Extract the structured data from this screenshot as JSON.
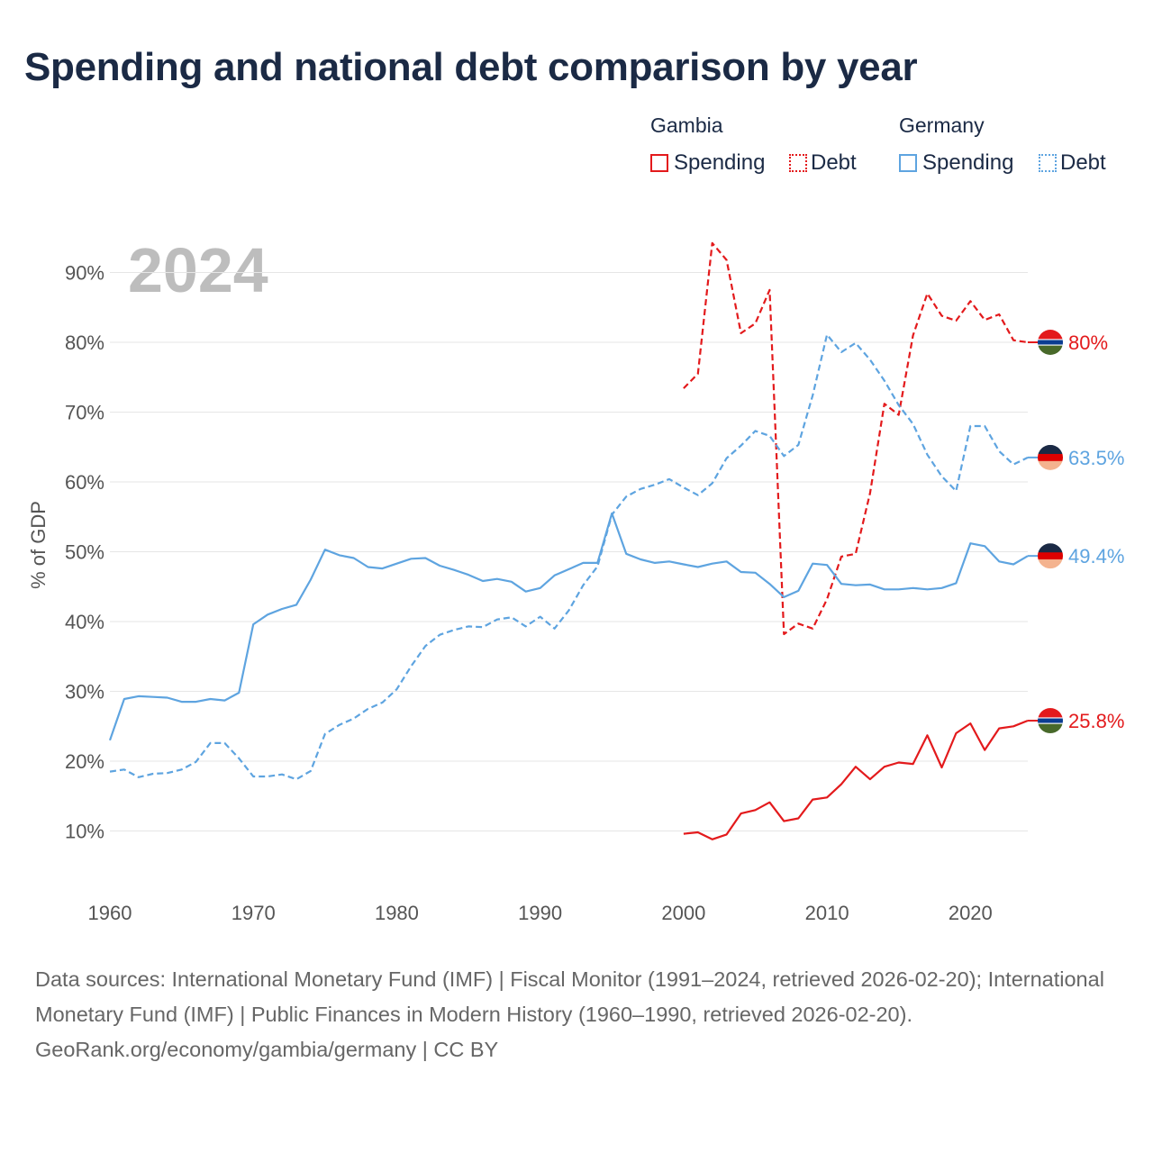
{
  "title": "Spending and national debt comparison by year",
  "year_watermark": "2024",
  "legend": {
    "groups": [
      {
        "name": "Gambia",
        "items": [
          {
            "label": "Spending",
            "style": "solid",
            "color": "#e31a1c"
          },
          {
            "label": "Debt",
            "style": "dotted",
            "color": "#e31a1c"
          }
        ]
      },
      {
        "name": "Germany",
        "items": [
          {
            "label": "Spending",
            "style": "solid",
            "color": "#5ea4e0"
          },
          {
            "label": "Debt",
            "style": "dotted",
            "color": "#5ea4e0"
          }
        ]
      }
    ]
  },
  "footer": {
    "sources": "Data sources: International Monetary Fund (IMF) | Fiscal Monitor (1991–2024, retrieved 2026-02-20); International Monetary Fund (IMF) | Public Finances in Modern History (1960–1990, retrieved 2026-02-20).",
    "credit": "GeoRank.org/economy/gambia/germany | CC BY"
  },
  "chart_data": {
    "type": "line",
    "title": "Spending and national debt comparison by year",
    "xlabel": "",
    "ylabel": "% of GDP",
    "xlim": [
      1960,
      2024
    ],
    "ylim": [
      0,
      100
    ],
    "x_ticks": [
      1960,
      1970,
      1980,
      1990,
      2000,
      2010,
      2020
    ],
    "y_ticks": [
      10,
      20,
      30,
      40,
      50,
      60,
      70,
      80,
      90
    ],
    "y_tick_labels": [
      "10%",
      "20%",
      "30%",
      "40%",
      "50%",
      "60%",
      "70%",
      "80%",
      "90%"
    ],
    "grid": true,
    "series": [
      {
        "name": "Gambia Spending",
        "country": "Gambia",
        "metric": "Spending",
        "style": "solid",
        "color": "#e31a1c",
        "end_label": "25.8%",
        "flag": "gambia",
        "x": [
          2000,
          2001,
          2002,
          2003,
          2004,
          2005,
          2006,
          2007,
          2008,
          2009,
          2010,
          2011,
          2012,
          2013,
          2014,
          2015,
          2016,
          2017,
          2018,
          2019,
          2020,
          2021,
          2022,
          2023,
          2024
        ],
        "values": [
          9.6,
          9.8,
          8.8,
          9.5,
          12.5,
          13.0,
          14.1,
          11.4,
          11.8,
          14.5,
          14.8,
          16.7,
          19.2,
          17.4,
          19.2,
          19.8,
          19.6,
          23.7,
          19.1,
          24.0,
          25.4,
          21.6,
          24.7,
          25.0,
          25.8
        ]
      },
      {
        "name": "Gambia Debt",
        "country": "Gambia",
        "metric": "Debt",
        "style": "dashed",
        "color": "#e31a1c",
        "end_label": "80%",
        "flag": "gambia",
        "x": [
          2000,
          2001,
          2002,
          2003,
          2004,
          2005,
          2006,
          2007,
          2008,
          2009,
          2010,
          2011,
          2012,
          2013,
          2014,
          2015,
          2016,
          2017,
          2018,
          2019,
          2020,
          2021,
          2022,
          2023,
          2024
        ],
        "values": [
          73.4,
          75.5,
          94.2,
          91.8,
          81.3,
          82.7,
          87.5,
          38.2,
          39.7,
          39.0,
          43.2,
          49.3,
          49.7,
          58.4,
          71.2,
          69.6,
          81.0,
          87.0,
          83.8,
          83.1,
          85.9,
          83.2,
          84.0,
          80.3,
          80.0
        ]
      },
      {
        "name": "Germany Spending",
        "country": "Germany",
        "metric": "Spending",
        "style": "solid",
        "color": "#5ea4e0",
        "end_label": "49.4%",
        "flag": "germany",
        "x": [
          1960,
          1961,
          1962,
          1963,
          1964,
          1965,
          1966,
          1967,
          1968,
          1969,
          1970,
          1971,
          1972,
          1973,
          1974,
          1975,
          1976,
          1977,
          1978,
          1979,
          1980,
          1981,
          1982,
          1983,
          1984,
          1985,
          1986,
          1987,
          1988,
          1989,
          1990,
          1991,
          1992,
          1993,
          1994,
          1995,
          1996,
          1997,
          1998,
          1999,
          2000,
          2001,
          2002,
          2003,
          2004,
          2005,
          2006,
          2007,
          2008,
          2009,
          2010,
          2011,
          2012,
          2013,
          2014,
          2015,
          2016,
          2017,
          2018,
          2019,
          2020,
          2021,
          2022,
          2023,
          2024
        ],
        "values": [
          23.0,
          28.9,
          29.3,
          29.2,
          29.1,
          28.5,
          28.5,
          28.9,
          28.7,
          29.8,
          39.6,
          41.0,
          41.8,
          42.4,
          46.0,
          50.3,
          49.5,
          49.1,
          47.8,
          47.6,
          48.3,
          49.0,
          49.1,
          48.0,
          47.4,
          46.7,
          45.8,
          46.1,
          45.7,
          44.3,
          44.8,
          46.6,
          47.5,
          48.4,
          48.4,
          55.5,
          49.7,
          48.9,
          48.4,
          48.6,
          48.2,
          47.8,
          48.3,
          48.6,
          47.1,
          47.0,
          45.4,
          43.5,
          44.4,
          48.3,
          48.1,
          45.4,
          45.2,
          45.3,
          44.6,
          44.6,
          44.8,
          44.6,
          44.8,
          45.5,
          51.2,
          50.8,
          48.6,
          48.2,
          49.4
        ]
      },
      {
        "name": "Germany Debt",
        "country": "Germany",
        "metric": "Debt",
        "style": "dashed",
        "color": "#5ea4e0",
        "end_label": "63.5%",
        "flag": "germany",
        "x": [
          1960,
          1961,
          1962,
          1963,
          1964,
          1965,
          1966,
          1967,
          1968,
          1969,
          1970,
          1971,
          1972,
          1973,
          1974,
          1975,
          1976,
          1977,
          1978,
          1979,
          1980,
          1981,
          1982,
          1983,
          1984,
          1985,
          1986,
          1987,
          1988,
          1989,
          1990,
          1991,
          1992,
          1993,
          1994,
          1995,
          1996,
          1997,
          1998,
          1999,
          2000,
          2001,
          2002,
          2003,
          2004,
          2005,
          2006,
          2007,
          2008,
          2009,
          2010,
          2011,
          2012,
          2013,
          2014,
          2015,
          2016,
          2017,
          2018,
          2019,
          2020,
          2021,
          2022,
          2023,
          2024
        ],
        "values": [
          18.5,
          18.8,
          17.7,
          18.2,
          18.3,
          18.8,
          19.9,
          22.6,
          22.6,
          20.4,
          17.8,
          17.8,
          18.1,
          17.4,
          18.6,
          23.9,
          25.2,
          26.1,
          27.5,
          28.4,
          30.3,
          33.6,
          36.5,
          38.1,
          38.8,
          39.3,
          39.2,
          40.3,
          40.6,
          39.3,
          40.7,
          39.0,
          41.6,
          45.2,
          47.9,
          55.3,
          57.9,
          59.0,
          59.6,
          60.4,
          59.2,
          58.1,
          59.8,
          63.4,
          65.2,
          67.3,
          66.6,
          63.7,
          65.3,
          72.4,
          81.1,
          78.6,
          79.9,
          77.5,
          74.5,
          71.0,
          68.3,
          63.9,
          60.8,
          58.7,
          68.0,
          68.0,
          64.4,
          62.5,
          63.5
        ]
      }
    ]
  }
}
